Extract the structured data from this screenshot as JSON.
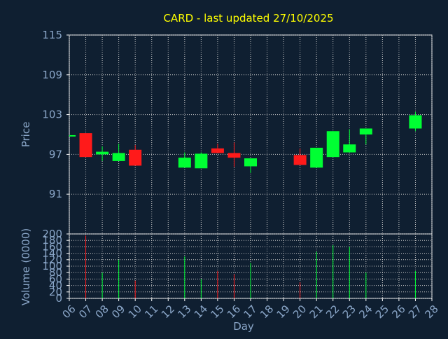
{
  "title": "CARD - last updated 27/10/2025",
  "colors": {
    "background": "#0f1f31",
    "title": "#ffff00",
    "axis_text": "#8aa6c8",
    "grid": "#c8c8c8",
    "up": "#00ff33",
    "down": "#ff1a1a",
    "frame": "#ffffff"
  },
  "chart_data": [
    {
      "type": "candlestick",
      "ylabel": "Price",
      "ylim": [
        85,
        115
      ],
      "yticks": [
        115,
        109,
        103,
        97,
        91
      ],
      "grid": true,
      "xlim": [
        6,
        28
      ],
      "candles": [
        {
          "day": 6,
          "open": 99.9,
          "close": 99.9,
          "high": 99.9,
          "low": 99.9,
          "dir": "up"
        },
        {
          "day": 7,
          "open": 100.2,
          "close": 96.6,
          "high": 100.2,
          "low": 96.6,
          "dir": "down"
        },
        {
          "day": 8,
          "open": 97.0,
          "close": 97.4,
          "high": 98.2,
          "low": 96.0,
          "dir": "up"
        },
        {
          "day": 9,
          "open": 96.0,
          "close": 97.2,
          "high": 98.6,
          "low": 96.0,
          "dir": "up"
        },
        {
          "day": 10,
          "open": 97.7,
          "close": 95.3,
          "high": 98.4,
          "low": 95.3,
          "dir": "down"
        },
        {
          "day": 13,
          "open": 95.0,
          "close": 96.5,
          "high": 97.3,
          "low": 95.0,
          "dir": "up"
        },
        {
          "day": 14,
          "open": 94.9,
          "close": 97.1,
          "high": 97.3,
          "low": 94.9,
          "dir": "up"
        },
        {
          "day": 15,
          "open": 97.9,
          "close": 97.2,
          "high": 98.6,
          "low": 97.2,
          "dir": "down"
        },
        {
          "day": 16,
          "open": 97.2,
          "close": 96.5,
          "high": 98.8,
          "low": 95.1,
          "dir": "down"
        },
        {
          "day": 17,
          "open": 95.2,
          "close": 96.4,
          "high": 96.4,
          "low": 94.2,
          "dir": "up"
        },
        {
          "day": 20,
          "open": 96.9,
          "close": 95.4,
          "high": 97.9,
          "low": 95.4,
          "dir": "down"
        },
        {
          "day": 21,
          "open": 95.0,
          "close": 98.0,
          "high": 98.0,
          "low": 95.0,
          "dir": "up"
        },
        {
          "day": 22,
          "open": 96.6,
          "close": 100.5,
          "high": 100.5,
          "low": 96.6,
          "dir": "up"
        },
        {
          "day": 23,
          "open": 97.3,
          "close": 98.5,
          "high": 100.8,
          "low": 97.3,
          "dir": "up"
        },
        {
          "day": 24,
          "open": 100.0,
          "close": 100.9,
          "high": 100.9,
          "low": 98.5,
          "dir": "up"
        },
        {
          "day": 27,
          "open": 100.9,
          "close": 102.9,
          "high": 103.4,
          "low": 100.5,
          "dir": "up"
        }
      ]
    },
    {
      "type": "bar",
      "ylabel": "Volume (0000)",
      "xlabel": "Day",
      "ylim": [
        0,
        200
      ],
      "yticks": [
        200,
        180,
        160,
        140,
        120,
        100,
        80,
        60,
        40,
        20,
        0
      ],
      "grid": true,
      "xlim": [
        6,
        28
      ],
      "xticks": [
        "06",
        "07",
        "08",
        "09",
        "10",
        "11",
        "12",
        "13",
        "14",
        "15",
        "16",
        "17",
        "18",
        "19",
        "20",
        "21",
        "22",
        "23",
        "24",
        "25",
        "26",
        "27",
        "28"
      ],
      "bars": [
        {
          "day": 7,
          "value": 195,
          "dir": "down"
        },
        {
          "day": 8,
          "value": 80,
          "dir": "up"
        },
        {
          "day": 9,
          "value": 120,
          "dir": "up"
        },
        {
          "day": 10,
          "value": 55,
          "dir": "down"
        },
        {
          "day": 13,
          "value": 130,
          "dir": "up"
        },
        {
          "day": 14,
          "value": 60,
          "dir": "up"
        },
        {
          "day": 15,
          "value": 85,
          "dir": "down"
        },
        {
          "day": 16,
          "value": 75,
          "dir": "down"
        },
        {
          "day": 17,
          "value": 110,
          "dir": "up"
        },
        {
          "day": 20,
          "value": 50,
          "dir": "down"
        },
        {
          "day": 21,
          "value": 145,
          "dir": "up"
        },
        {
          "day": 22,
          "value": 165,
          "dir": "up"
        },
        {
          "day": 23,
          "value": 160,
          "dir": "up"
        },
        {
          "day": 24,
          "value": 80,
          "dir": "up"
        },
        {
          "day": 27,
          "value": 85,
          "dir": "up"
        }
      ]
    }
  ]
}
